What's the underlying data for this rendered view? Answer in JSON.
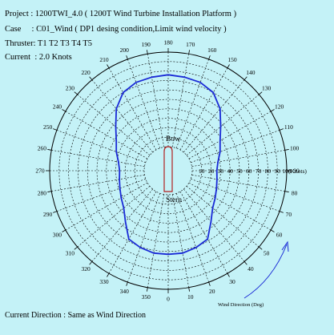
{
  "header": {
    "project": "Project : 1200TWI_4.0 ( 1200T Wind Turbine Installation Platform )",
    "case": "Case     : C01_Wind ( DP1 desing condition,Limit wind velocity )",
    "thruster": "Thruster: T1 T2 T3 T4 T5",
    "current": "Current  : 2.0 Knots"
  },
  "footer": {
    "current_direction": "Current Direction : Same as Wind Direction"
  },
  "chart_data": {
    "type": "polar",
    "radial_unit_label": "(Knots)",
    "radial_ticks": [
      10,
      20,
      30,
      40,
      50,
      60,
      70,
      80,
      90,
      100
    ],
    "radial_max": 100,
    "radial_tick_labels": [
      "10",
      "20",
      "30",
      "40",
      "50",
      "60",
      "70",
      "80",
      "90",
      "100"
    ],
    "angle_labels": [
      "0",
      "10",
      "20",
      "30",
      "40",
      "50",
      "60",
      "70",
      "80",
      "90",
      "100",
      "110",
      "120",
      "130",
      "140",
      "150",
      "160",
      "170",
      "180",
      "190",
      "200",
      "210",
      "220",
      "230",
      "240",
      "250",
      "260",
      "270",
      "280",
      "290",
      "300",
      "310",
      "320",
      "330",
      "340",
      "350"
    ],
    "angle_direction": "counterclockwise",
    "zero_position": "bottom",
    "grid": true,
    "series": [
      {
        "name": "",
        "color": "#1a2ad6",
        "points": [
          {
            "angle": 0,
            "r": 63
          },
          {
            "angle": 10,
            "r": 63
          },
          {
            "angle": 20,
            "r": 61
          },
          {
            "angle": 30,
            "r": 58
          },
          {
            "angle": 40,
            "r": 45
          },
          {
            "angle": 50,
            "r": 36
          },
          {
            "angle": 60,
            "r": 32
          },
          {
            "angle": 70,
            "r": 29
          },
          {
            "angle": 80,
            "r": 27
          },
          {
            "angle": 90,
            "r": 26
          },
          {
            "angle": 100,
            "r": 28
          },
          {
            "angle": 110,
            "r": 33
          },
          {
            "angle": 120,
            "r": 38
          },
          {
            "angle": 130,
            "r": 47
          },
          {
            "angle": 140,
            "r": 60
          },
          {
            "angle": 150,
            "r": 70
          },
          {
            "angle": 160,
            "r": 74
          },
          {
            "angle": 170,
            "r": 75
          },
          {
            "angle": 180,
            "r": 76
          },
          {
            "angle": 190,
            "r": 75
          },
          {
            "angle": 200,
            "r": 74
          },
          {
            "angle": 210,
            "r": 70
          },
          {
            "angle": 220,
            "r": 60
          },
          {
            "angle": 230,
            "r": 47
          },
          {
            "angle": 240,
            "r": 38
          },
          {
            "angle": 250,
            "r": 33
          },
          {
            "angle": 260,
            "r": 28
          },
          {
            "angle": 270,
            "r": 26
          },
          {
            "angle": 280,
            "r": 27
          },
          {
            "angle": 290,
            "r": 29
          },
          {
            "angle": 300,
            "r": 32
          },
          {
            "angle": 310,
            "r": 36
          },
          {
            "angle": 320,
            "r": 45
          },
          {
            "angle": 330,
            "r": 58
          },
          {
            "angle": 340,
            "r": 61
          },
          {
            "angle": 350,
            "r": 63
          }
        ]
      }
    ],
    "vessel": {
      "bow_label": "Bow",
      "stern_label": "Stern",
      "color": "#b02020"
    },
    "wind_direction_label": "Wind Direction (Deg)",
    "colors": {
      "background": "#c4f2f7",
      "grid": "#000000",
      "envelope": "#1a2ad6",
      "vessel": "#b02020",
      "arrow": "#1a2ad6"
    }
  }
}
